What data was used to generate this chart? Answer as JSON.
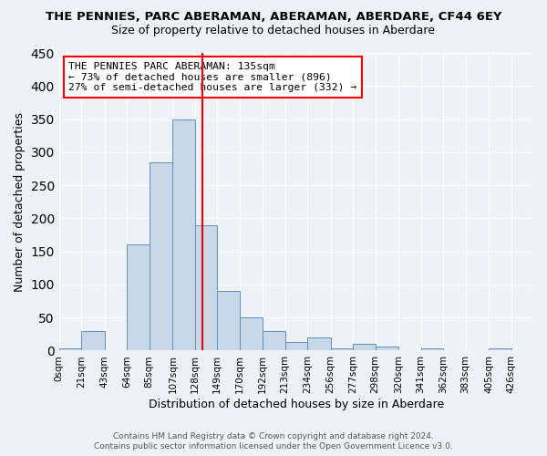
{
  "title": "THE PENNIES, PARC ABERAMAN, ABERAMAN, ABERDARE, CF44 6EY",
  "subtitle": "Size of property relative to detached houses in Aberdare",
  "xlabel": "Distribution of detached houses by size in Aberdare",
  "ylabel": "Number of detached properties",
  "bar_labels": [
    "0sqm",
    "21sqm",
    "43sqm",
    "64sqm",
    "85sqm",
    "107sqm",
    "128sqm",
    "149sqm",
    "170sqm",
    "192sqm",
    "213sqm",
    "234sqm",
    "256sqm",
    "277sqm",
    "298sqm",
    "320sqm",
    "341sqm",
    "362sqm",
    "383sqm",
    "405sqm",
    "426sqm"
  ],
  "bar_values": [
    3,
    30,
    0,
    160,
    285,
    350,
    190,
    90,
    50,
    30,
    13,
    20,
    4,
    10,
    6,
    0,
    4,
    0,
    0,
    3,
    0
  ],
  "bar_color": "#c8d8e8",
  "bar_edge_color": "#6090b8",
  "reference_line_x": 135,
  "ylim": [
    0,
    450
  ],
  "yticks": [
    0,
    50,
    100,
    150,
    200,
    250,
    300,
    350,
    400,
    450
  ],
  "background_color": "#eef2f7",
  "annotation_title": "THE PENNIES PARC ABERAMAN: 135sqm",
  "annotation_line1": "← 73% of detached houses are smaller (896)",
  "annotation_line2": "27% of semi-detached houses are larger (332) →",
  "footer_line1": "Contains HM Land Registry data © Crown copyright and database right 2024.",
  "footer_line2": "Contains public sector information licensed under the Open Government Licence v3.0."
}
